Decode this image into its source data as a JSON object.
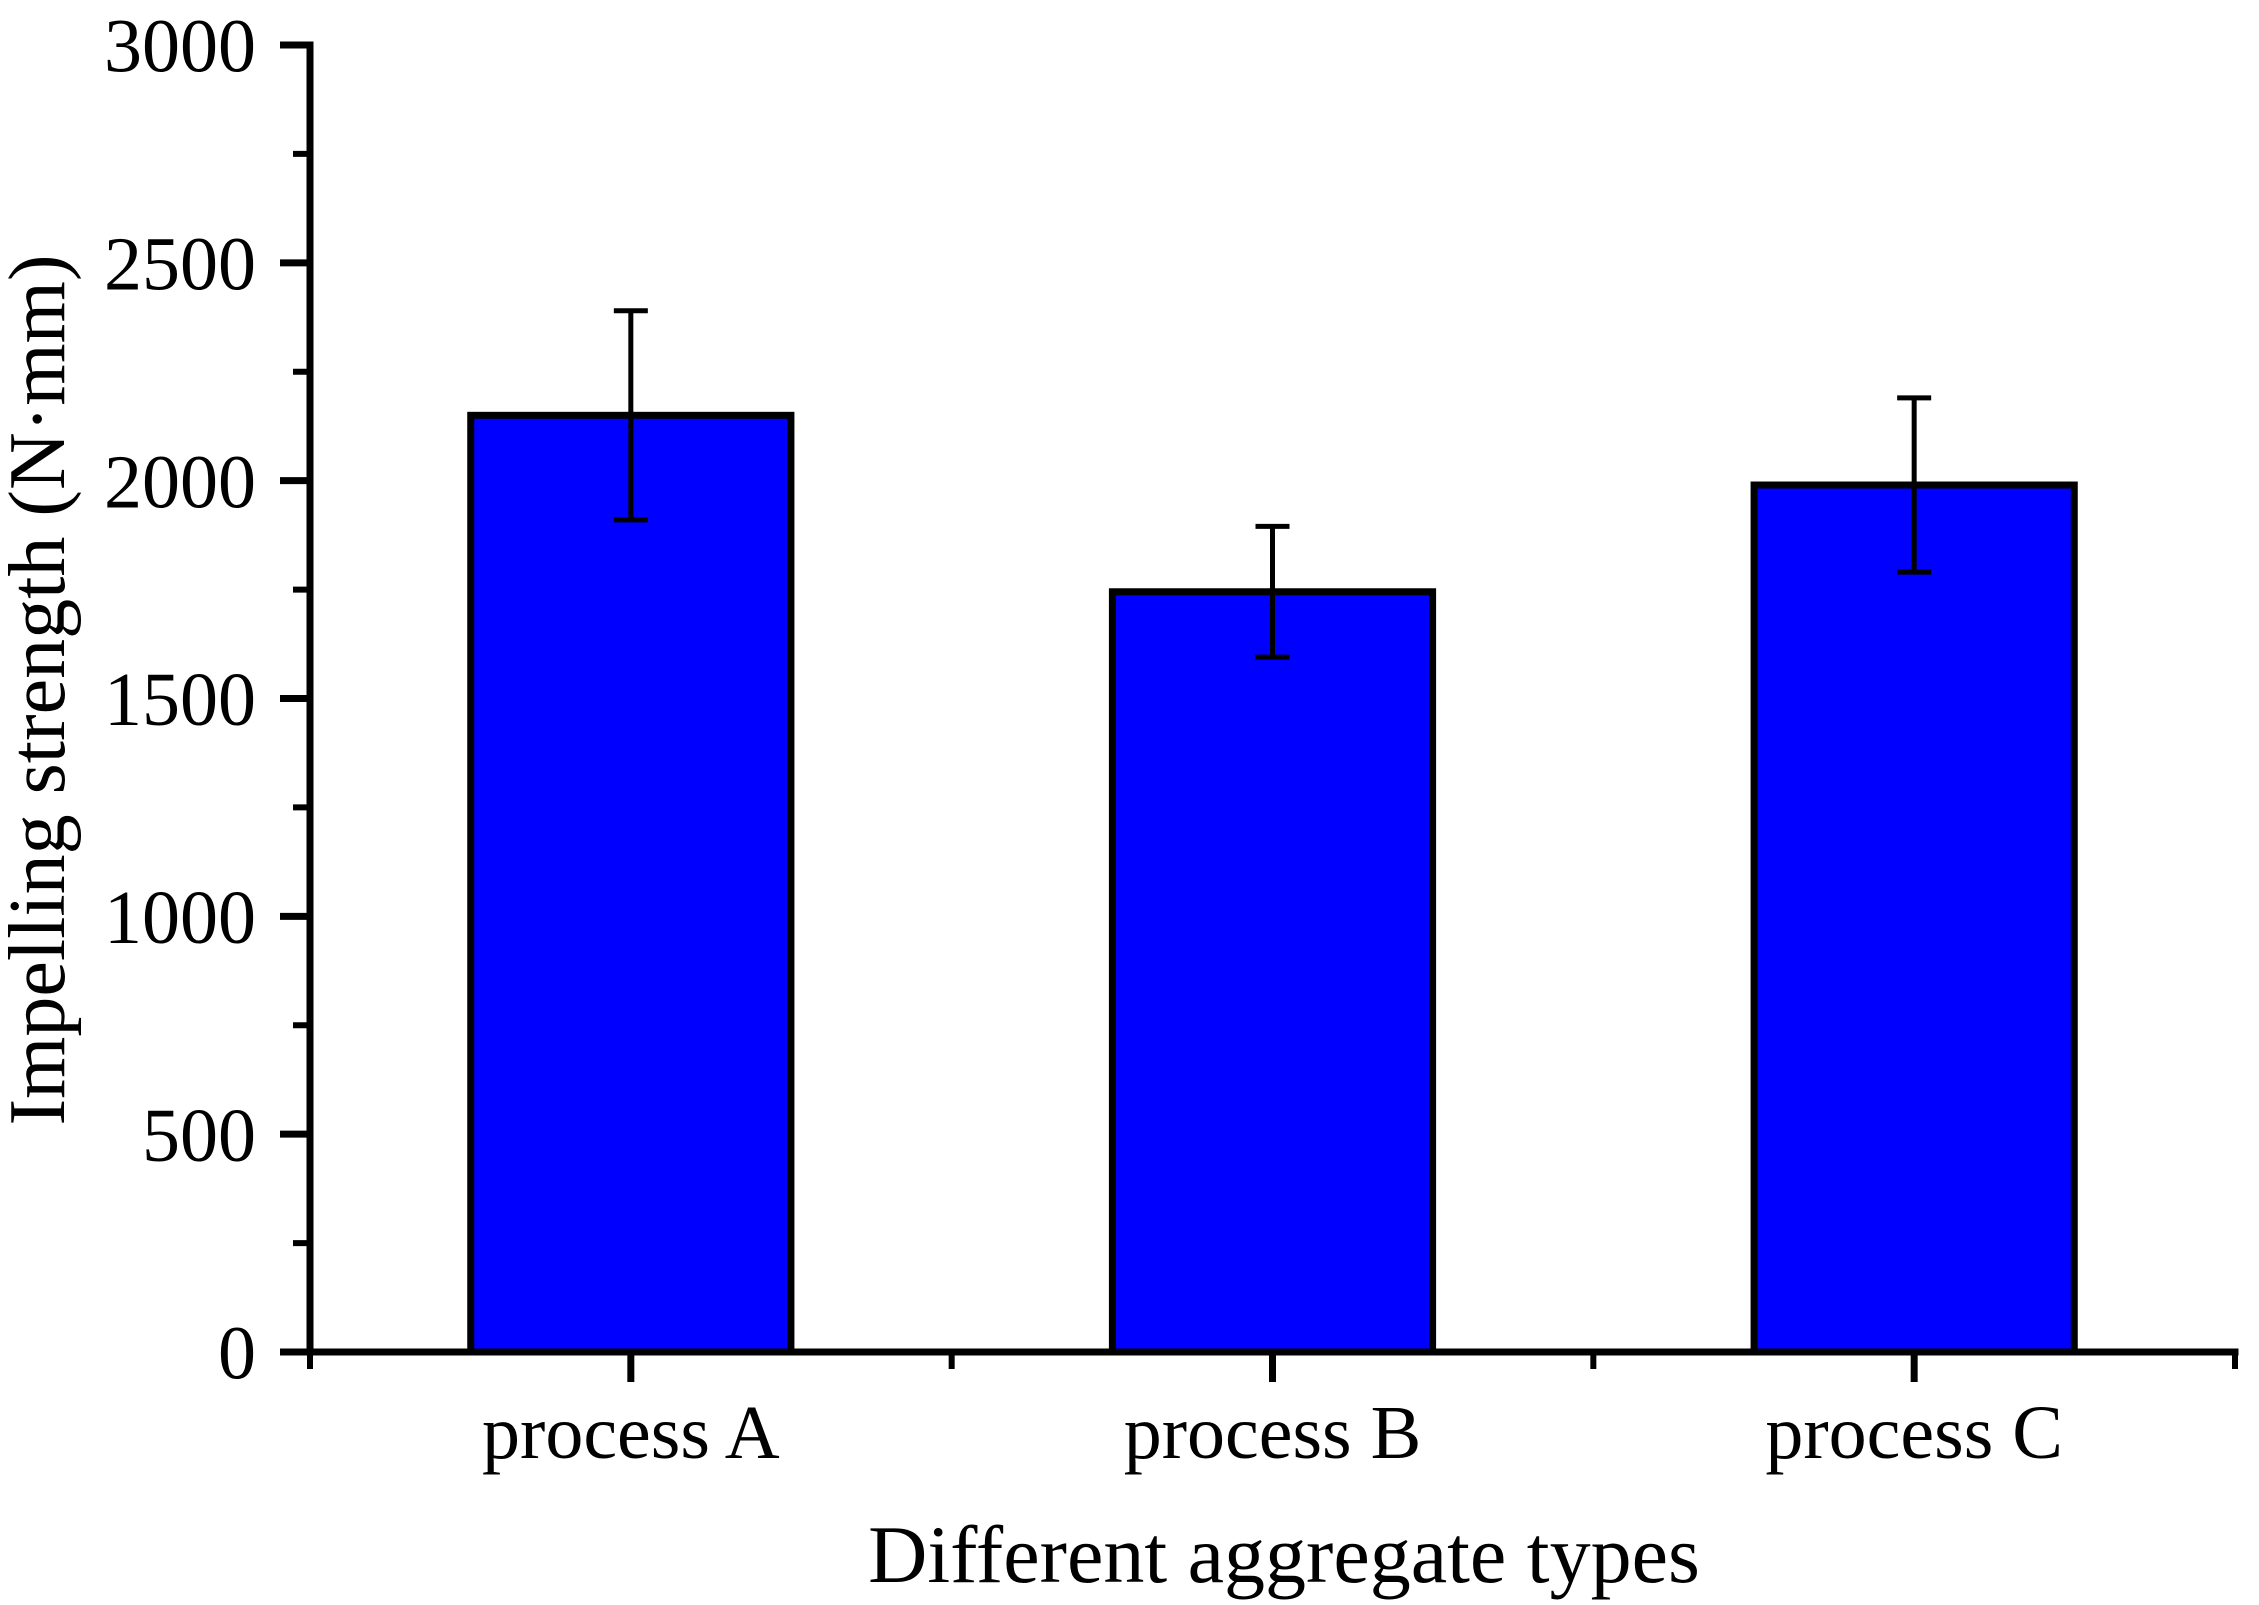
{
  "chart_data": {
    "type": "bar",
    "title": "",
    "xlabel": "Different aggregate types",
    "ylabel": "Impelling strength (N·mm)",
    "categories": [
      "process A",
      "process B",
      "process C"
    ],
    "series": [
      {
        "name": "Impelling strength",
        "values": [
          2150,
          1745,
          1990
        ],
        "errors": [
          240,
          150,
          200
        ]
      }
    ],
    "values": [
      2150,
      1745,
      1990
    ],
    "errors": [
      240,
      150,
      200
    ],
    "error_ranges": [
      [
        1910,
        2390
      ],
      [
        1595,
        1895
      ],
      [
        1790,
        2190
      ]
    ],
    "ylim": [
      0,
      3000
    ],
    "y_major_step": 500,
    "y_minor_step": 250,
    "y_tick_labels": [
      "0",
      "500",
      "1000",
      "1500",
      "2000",
      "2500",
      "3000"
    ],
    "grid": false,
    "legend": "none",
    "tick_direction": "out",
    "bar_width_fraction": 0.5,
    "colors": {
      "bar_fill": "#0000FF",
      "bar_edge": "#000000",
      "error_bar": "#000000",
      "axis": "#000000",
      "background": "#FFFFFF",
      "text": "#000000"
    }
  }
}
